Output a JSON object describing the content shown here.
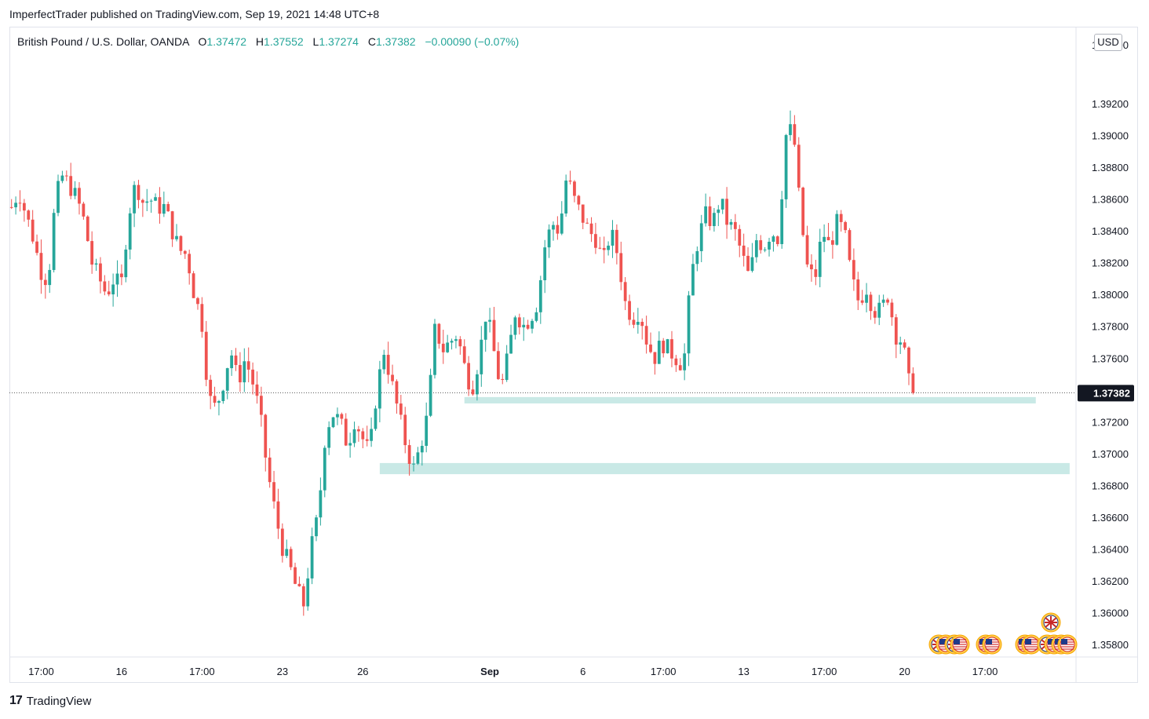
{
  "header": {
    "publish_line": "ImperfectTrader published on TradingView.com, Sep 19, 2021 14:48 UTC+8"
  },
  "legend": {
    "symbol": "British Pound / U.S. Dollar, OANDA",
    "o_label": "O",
    "o_value": "1.37472",
    "h_label": "H",
    "h_value": "1.37552",
    "l_label": "L",
    "l_value": "1.37274",
    "c_label": "C",
    "c_value": "1.37382",
    "change": "−0.00090 (−0.07%)"
  },
  "currency_badge": "USD",
  "footer": {
    "brand": "TradingView",
    "logo_glyph": "17"
  },
  "colors": {
    "up": "#26a69a",
    "down": "#ef5350",
    "zone": "#b2dfdb",
    "price_label_bg": "#131722"
  },
  "chart_data": {
    "type": "candlestick",
    "title": "",
    "ylim": [
      1.3572,
      1.3968
    ],
    "y_ticks": [
      "1.39200",
      "1.39000",
      "1.38800",
      "1.38600",
      "1.38400",
      "1.38200",
      "1.38000",
      "1.37800",
      "1.37600",
      "1.37200",
      "1.37000",
      "1.36800",
      "1.36600",
      "1.36400",
      "1.36200",
      "1.36000",
      "1.35800"
    ],
    "y_tick_values": [
      1.392,
      1.39,
      1.388,
      1.386,
      1.384,
      1.382,
      1.38,
      1.378,
      1.376,
      1.372,
      1.37,
      1.368,
      1.366,
      1.364,
      1.362,
      1.36,
      1.358
    ],
    "top_partial_tick": "1.39400",
    "x_ticks": [
      {
        "label": "17:00",
        "index": 7,
        "bold": false
      },
      {
        "label": "16",
        "index": 26,
        "bold": false
      },
      {
        "label": "17:00",
        "index": 45,
        "bold": false
      },
      {
        "label": "23",
        "index": 64,
        "bold": false
      },
      {
        "label": "26",
        "index": 83,
        "bold": false
      },
      {
        "label": "Sep",
        "index": 113,
        "bold": true
      },
      {
        "label": "6",
        "index": 135,
        "bold": false
      },
      {
        "label": "17:00",
        "index": 154,
        "bold": false
      },
      {
        "label": "13",
        "index": 173,
        "bold": false
      },
      {
        "label": "17:00",
        "index": 192,
        "bold": false
      },
      {
        "label": "20",
        "index": 211,
        "bold": false
      },
      {
        "label": "17:00",
        "index": 230,
        "bold": false
      }
    ],
    "last_price": 1.37382,
    "last_price_label": "1.37382",
    "zones": [
      {
        "y_high": 1.37355,
        "y_low": 1.37315,
        "x_start": 107,
        "x_end": 242
      },
      {
        "y_high": 1.3694,
        "y_low": 1.3687,
        "x_start": 87,
        "x_end": 250
      }
    ],
    "anchors": [
      1.3855,
      1.3865,
      1.385,
      1.3835,
      1.3815,
      1.3808,
      1.386,
      1.3875,
      1.3868,
      1.386,
      1.3845,
      1.382,
      1.381,
      1.38,
      1.381,
      1.3805,
      1.385,
      1.387,
      1.3858,
      1.386,
      1.3855,
      1.3855,
      1.384,
      1.3828,
      1.3825,
      1.38,
      1.3785,
      1.3735,
      1.3728,
      1.3745,
      1.3765,
      1.3745,
      1.376,
      1.3745,
      1.3725,
      1.369,
      1.3665,
      1.3642,
      1.363,
      1.3615,
      1.3605,
      1.364,
      1.3662,
      1.3715,
      1.3725,
      1.372,
      1.3705,
      1.3722,
      1.371,
      1.37,
      1.374,
      1.3765,
      1.3745,
      1.3725,
      1.3705,
      1.369,
      1.3705,
      1.3725,
      1.378,
      1.3765,
      1.377,
      1.3775,
      1.3755,
      1.374,
      1.376,
      1.379,
      1.3765,
      1.374,
      1.3762,
      1.379,
      1.378,
      1.3785,
      1.3795,
      1.383,
      1.3845,
      1.384,
      1.3875,
      1.386,
      1.385,
      1.384,
      1.3835,
      1.382,
      1.384,
      1.3825,
      1.3795,
      1.3785,
      1.379,
      1.377,
      1.376,
      1.377,
      1.3765,
      1.376,
      1.3755,
      1.381,
      1.3835,
      1.385,
      1.3845,
      1.386,
      1.3845,
      1.384,
      1.3825,
      1.381,
      1.3835,
      1.383,
      1.384,
      1.3835,
      1.39,
      1.3905,
      1.385,
      1.3815,
      1.381,
      1.384,
      1.383,
      1.3845,
      1.384,
      1.381,
      1.3795,
      1.3805,
      1.379,
      1.379,
      1.38,
      1.3775,
      1.377,
      1.374,
      1.3738
    ]
  }
}
